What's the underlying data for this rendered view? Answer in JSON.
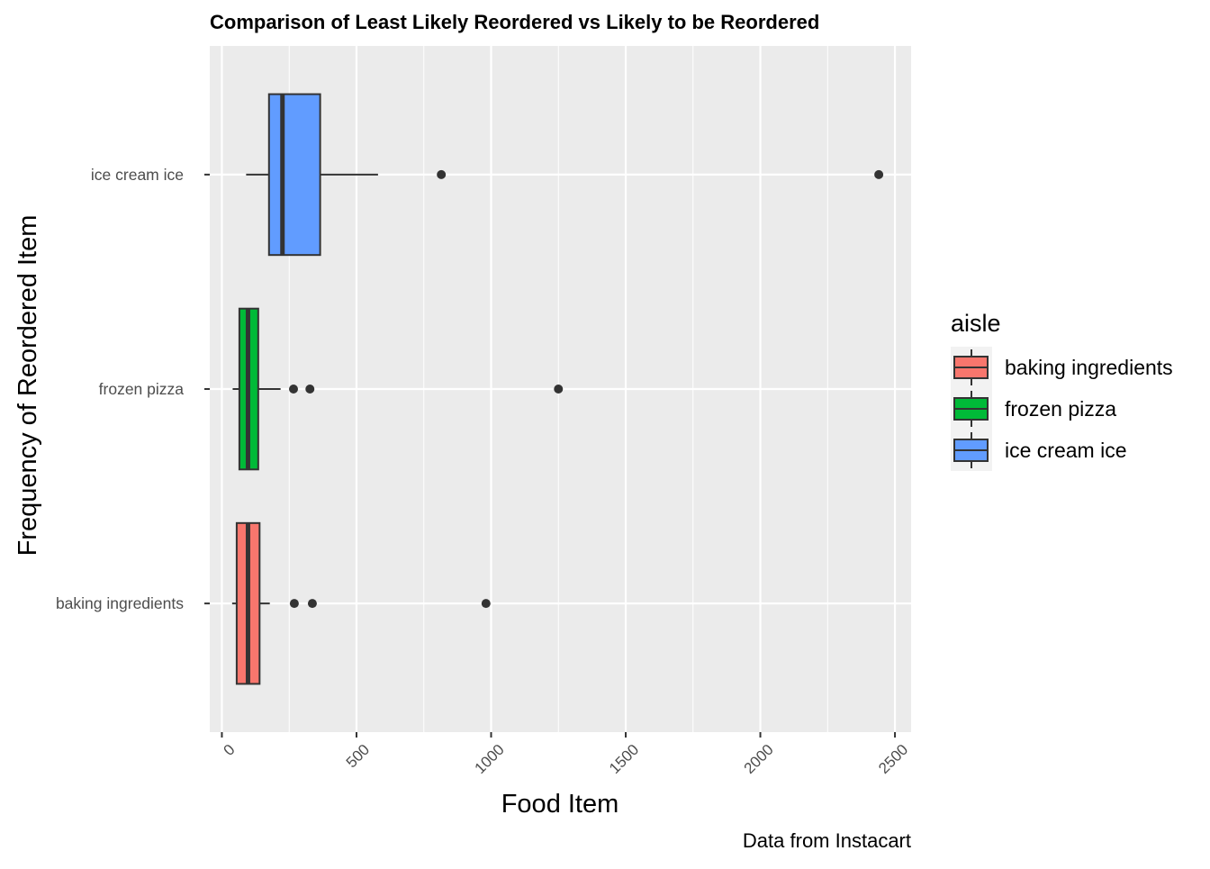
{
  "chart_data": {
    "type": "boxplot",
    "orientation": "horizontal",
    "title": "Comparison of Least Likely Reordered vs Likely to be Reordered",
    "xlabel": "Food Item",
    "ylabel": "Frequency of Reordered Item",
    "caption": "Data from Instacart",
    "xlim": [
      -45,
      2560
    ],
    "x_ticks": [
      0,
      500,
      1000,
      1500,
      2000,
      2500
    ],
    "x_tick_labels": [
      "0",
      "500",
      "1000",
      "1500",
      "2000",
      "2500"
    ],
    "categories": [
      "baking ingredients",
      "frozen pizza",
      "ice cream ice"
    ],
    "grid": true,
    "legend": {
      "title": "aisle",
      "position": "right",
      "entries": [
        "baking ingredients",
        "frozen pizza",
        "ice cream ice"
      ]
    },
    "series": [
      {
        "name": "baking ingredients",
        "color": "#F8766D",
        "whisker_low": 38,
        "q1": 55,
        "median": 97,
        "q3": 140,
        "whisker_high": 178,
        "outliers": [
          269,
          336,
          981
        ]
      },
      {
        "name": "frozen pizza",
        "color": "#00BA38",
        "whisker_low": 40,
        "q1": 65,
        "median": 97,
        "q3": 135,
        "whisker_high": 218,
        "outliers": [
          266,
          327,
          1250
        ]
      },
      {
        "name": "ice cream ice",
        "color": "#619CFF",
        "whisker_low": 90,
        "q1": 175,
        "median": 225,
        "q3": 365,
        "whisker_high": 580,
        "outliers": [
          815,
          2440
        ]
      }
    ]
  }
}
